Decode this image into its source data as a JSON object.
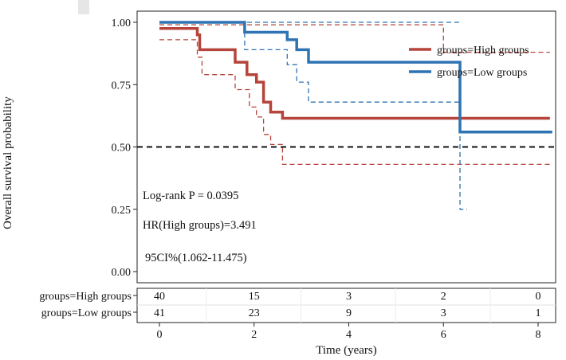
{
  "chart_data": {
    "type": "line",
    "subtype": "kaplan-meier",
    "xlabel": "Time (years)",
    "ylabel": "Overall survival probability",
    "xlim": [
      0,
      8.3
    ],
    "ylim": [
      0,
      1.07
    ],
    "x_ticks": [
      0,
      2,
      4,
      6,
      8
    ],
    "x_tick_labels": [
      "0",
      "2",
      "4",
      "6",
      "8"
    ],
    "y_ticks": [
      0.0,
      0.25,
      0.5,
      0.75,
      1.0
    ],
    "y_tick_labels": [
      "0.00",
      "0.25",
      "0.50",
      "0.75",
      "1.00"
    ],
    "grid": false,
    "legend_position": "top-right",
    "reference_line": {
      "y": 0.5,
      "color": "#111111",
      "style": "dashed"
    },
    "annotations": [
      "Log-rank P = 0.0395",
      "HR(High groups)=3.491",
      "95CI%(1.062-11.475)"
    ],
    "series": [
      {
        "name": "groups=High groups",
        "color": "#b5443a",
        "x": [
          0,
          0.8,
          0.8,
          0.85,
          0.85,
          1.6,
          1.6,
          1.85,
          1.85,
          2.05,
          2.05,
          2.2,
          2.2,
          2.35,
          2.35,
          2.6,
          2.6,
          8.25
        ],
        "y": [
          0.975,
          0.975,
          0.95,
          0.95,
          0.89,
          0.89,
          0.84,
          0.84,
          0.79,
          0.79,
          0.76,
          0.76,
          0.68,
          0.68,
          0.64,
          0.64,
          0.615,
          0.615
        ],
        "ci_lower": {
          "x": [
            0,
            0.8,
            0.8,
            0.9,
            0.9,
            1.6,
            1.6,
            1.9,
            1.9,
            2.05,
            2.05,
            2.2,
            2.2,
            2.35,
            2.35,
            2.6,
            2.6,
            8.25
          ],
          "y": [
            0.93,
            0.93,
            0.86,
            0.86,
            0.79,
            0.79,
            0.73,
            0.73,
            0.66,
            0.66,
            0.62,
            0.62,
            0.55,
            0.55,
            0.51,
            0.51,
            0.43,
            0.43
          ]
        },
        "ci_upper": {
          "x": [
            0,
            6.0,
            6.0,
            8.25
          ],
          "y": [
            0.99,
            0.99,
            0.88,
            0.88
          ]
        }
      },
      {
        "name": "groups=Low groups",
        "color": "#2e73b3",
        "x": [
          0,
          1.8,
          1.8,
          2.7,
          2.7,
          2.9,
          2.9,
          3.15,
          3.15,
          6.35,
          6.35,
          8.3
        ],
        "y": [
          1.0,
          1.0,
          0.96,
          0.96,
          0.93,
          0.93,
          0.89,
          0.89,
          0.84,
          0.84,
          0.56,
          0.56
        ],
        "ci_lower": {
          "x": [
            0,
            1.8,
            1.8,
            2.7,
            2.7,
            2.9,
            2.9,
            3.15,
            3.15,
            6.35,
            6.35,
            6.5
          ],
          "y": [
            1.0,
            1.0,
            0.89,
            0.89,
            0.83,
            0.83,
            0.76,
            0.76,
            0.68,
            0.68,
            0.25,
            0.25
          ]
        },
        "ci_upper": {
          "x": [
            0,
            6.4
          ],
          "y": [
            1.0,
            1.0
          ]
        }
      }
    ],
    "risk_table": {
      "times": [
        0,
        2,
        4,
        6,
        8
      ],
      "rows": [
        {
          "label": "groups=High groups",
          "values": [
            "40",
            "15",
            "3",
            "2",
            "0"
          ]
        },
        {
          "label": "groups=Low groups",
          "values": [
            "41",
            "23",
            "9",
            "3",
            "1"
          ]
        }
      ]
    }
  }
}
